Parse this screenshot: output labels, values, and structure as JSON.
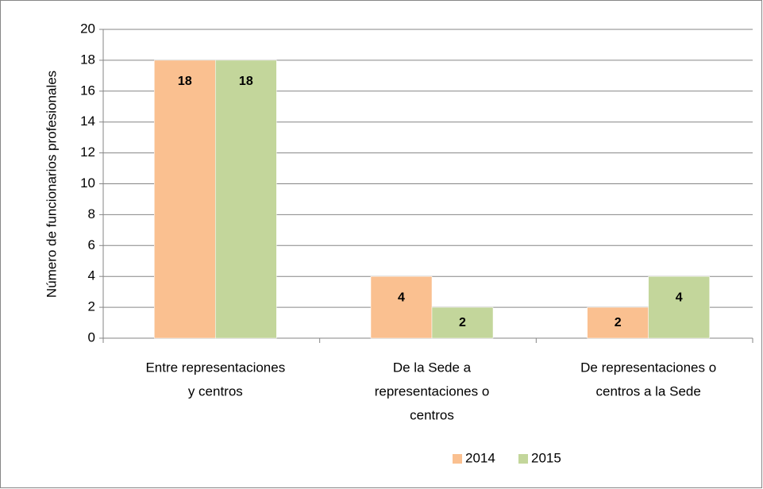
{
  "chart_data": {
    "type": "bar",
    "y_label": "Número de funcionarios profesionales",
    "categories": [
      [
        "Entre representaciones",
        "y centros"
      ],
      [
        "De la Sede a",
        "representaciones o",
        "centros"
      ],
      [
        "De representaciones o",
        "centros a la Sede"
      ]
    ],
    "series": [
      {
        "name": "2014",
        "color": "#fac090",
        "values": [
          18,
          4,
          2
        ]
      },
      {
        "name": "2015",
        "color": "#c3d69b",
        "values": [
          18,
          2,
          4
        ]
      }
    ],
    "ylim": [
      0,
      20
    ],
    "yticks": [
      0,
      2,
      4,
      6,
      8,
      10,
      12,
      14,
      16,
      18,
      20
    ],
    "grid": true,
    "legend": "bottom"
  }
}
